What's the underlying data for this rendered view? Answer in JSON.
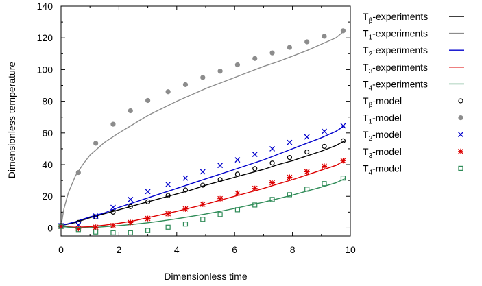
{
  "chart_data": {
    "type": "line",
    "title": "",
    "xlabel": "Dimensionless time",
    "ylabel": "Dimensionless temperature",
    "xlim": [
      0,
      10
    ],
    "ylim": [
      -5,
      140
    ],
    "xticks": [
      0,
      2,
      4,
      6,
      8,
      10
    ],
    "yticks": [
      0,
      20,
      40,
      60,
      80,
      100,
      120,
      140
    ],
    "grid": false,
    "legend_position": "right-outside",
    "series_lines": [
      {
        "base": "T",
        "sub": "β",
        "suffix": "-experiments",
        "color": "#000000",
        "x": [
          0,
          0.5,
          1,
          1.5,
          2,
          2.5,
          3,
          3.5,
          4,
          4.5,
          5,
          5.5,
          6,
          6.5,
          7,
          7.5,
          8,
          8.5,
          9,
          9.5,
          9.8
        ],
        "y": [
          1.5,
          3.5,
          6.5,
          9,
          11.5,
          14,
          16.5,
          19,
          21.5,
          24,
          27,
          29.5,
          32,
          34.5,
          37,
          40,
          42.5,
          45.5,
          48.5,
          52,
          55
        ]
      },
      {
        "base": "T",
        "sub": "1",
        "suffix": "-experiments",
        "color": "#8c8c8c",
        "x": [
          0,
          0.1,
          0.25,
          0.5,
          0.75,
          1,
          1.5,
          2,
          2.5,
          3,
          3.5,
          4,
          4.5,
          5,
          5.5,
          6,
          6.5,
          7,
          7.5,
          8,
          8.5,
          9,
          9.5,
          9.8
        ],
        "y": [
          1,
          12,
          22,
          33,
          40,
          46,
          54,
          60,
          65.5,
          71,
          75.5,
          80,
          84,
          88,
          91.5,
          95,
          98.5,
          102,
          105,
          108.5,
          112,
          116,
          120,
          124.5
        ]
      },
      {
        "base": "T",
        "sub": "2",
        "suffix": "-experiments",
        "color": "#0000cc",
        "x": [
          0,
          0.5,
          1,
          1.5,
          2,
          2.5,
          3,
          3.5,
          4,
          4.5,
          5,
          5.5,
          6,
          6.5,
          7,
          7.5,
          8,
          8.5,
          9,
          9.5,
          9.8
        ],
        "y": [
          1.5,
          4,
          7,
          9.5,
          13,
          16,
          19,
          22,
          25,
          28,
          31,
          34,
          37,
          40,
          43,
          46.5,
          50,
          53.5,
          57,
          61,
          64.5
        ]
      },
      {
        "base": "T",
        "sub": "3",
        "suffix": "-experiments",
        "color": "#dd0000",
        "x": [
          0,
          0.5,
          1,
          1.5,
          2,
          2.5,
          3,
          3.5,
          4,
          4.5,
          5,
          5.5,
          6,
          6.5,
          7,
          7.5,
          8,
          8.5,
          9,
          9.5,
          9.8
        ],
        "y": [
          1,
          0.5,
          0.8,
          1.8,
          3,
          4.5,
          6.5,
          8.5,
          10.5,
          12.8,
          15,
          17.5,
          20,
          22.5,
          25,
          27.8,
          30.5,
          33.5,
          36.5,
          39.5,
          42.5
        ]
      },
      {
        "base": "T",
        "sub": "4",
        "suffix": "-experiments",
        "color": "#2e8b57",
        "x": [
          0,
          0.5,
          1,
          1.5,
          2,
          2.5,
          3,
          3.5,
          4,
          4.5,
          5,
          5.5,
          6,
          6.5,
          7,
          7.5,
          8,
          8.5,
          9,
          9.5,
          9.8
        ],
        "y": [
          1,
          0,
          0.2,
          0.8,
          1.5,
          2.3,
          3.3,
          4.5,
          5.8,
          7.3,
          8.8,
          10.5,
          12.3,
          14.3,
          16.3,
          18.5,
          20.8,
          23.3,
          25.8,
          28.5,
          31
        ]
      }
    ],
    "series_markers": [
      {
        "base": "T",
        "sub": "β",
        "suffix": "-model",
        "marker": "open-circle",
        "color": "#000000",
        "x": [
          0,
          0.6,
          1.2,
          1.8,
          2.4,
          3.0,
          3.7,
          4.3,
          4.9,
          5.5,
          6.1,
          6.7,
          7.3,
          7.9,
          8.5,
          9.1,
          9.75
        ],
        "y": [
          1.5,
          3.5,
          7,
          10,
          13.5,
          16.5,
          20.5,
          24,
          27,
          30.5,
          34,
          37.5,
          41,
          44.5,
          48,
          51.5,
          55
        ]
      },
      {
        "base": "T",
        "sub": "1",
        "suffix": "-model",
        "marker": "filled-circle",
        "color": "#8c8c8c",
        "x": [
          0,
          0.6,
          1.2,
          1.8,
          2.4,
          3.0,
          3.7,
          4.3,
          4.9,
          5.5,
          6.1,
          6.7,
          7.3,
          7.9,
          8.5,
          9.1,
          9.75
        ],
        "y": [
          1,
          35,
          53.5,
          65.5,
          74,
          80.5,
          86,
          90.5,
          95,
          99,
          103,
          107,
          110.5,
          114,
          117.5,
          121,
          124.5
        ]
      },
      {
        "base": "T",
        "sub": "2",
        "suffix": "-model",
        "marker": "cross",
        "color": "#0000cc",
        "x": [
          0,
          0.6,
          1.2,
          1.8,
          2.4,
          3.0,
          3.7,
          4.3,
          4.9,
          5.5,
          6.1,
          6.7,
          7.3,
          7.9,
          8.5,
          9.1,
          9.75
        ],
        "y": [
          1.5,
          2,
          7.5,
          13,
          18,
          23,
          27.5,
          31.5,
          35.5,
          39.5,
          43,
          46.5,
          50,
          54,
          57.5,
          61,
          64.5
        ]
      },
      {
        "base": "T",
        "sub": "3",
        "suffix": "-model",
        "marker": "star",
        "color": "#dd0000",
        "x": [
          0,
          0.6,
          1.2,
          1.8,
          2.4,
          3.0,
          3.7,
          4.3,
          4.9,
          5.5,
          6.1,
          6.7,
          7.3,
          7.9,
          8.5,
          9.1,
          9.75
        ],
        "y": [
          1,
          -0.5,
          0.5,
          1.5,
          3.5,
          6,
          9,
          12,
          15,
          18.5,
          22,
          25,
          28.5,
          32,
          35.5,
          39,
          42.5
        ]
      },
      {
        "base": "T",
        "sub": "4",
        "suffix": "-model",
        "marker": "open-square",
        "color": "#2e8b57",
        "x": [
          0,
          0.6,
          1.2,
          1.8,
          2.4,
          3.0,
          3.7,
          4.3,
          4.9,
          5.5,
          6.1,
          6.7,
          7.3,
          7.9,
          8.5,
          9.1,
          9.75
        ],
        "y": [
          1,
          -1,
          -2.5,
          -3,
          -3,
          -1.5,
          0.5,
          2.5,
          5.5,
          8.5,
          11.5,
          14.5,
          18,
          21,
          24.5,
          28,
          31.5
        ]
      }
    ]
  }
}
